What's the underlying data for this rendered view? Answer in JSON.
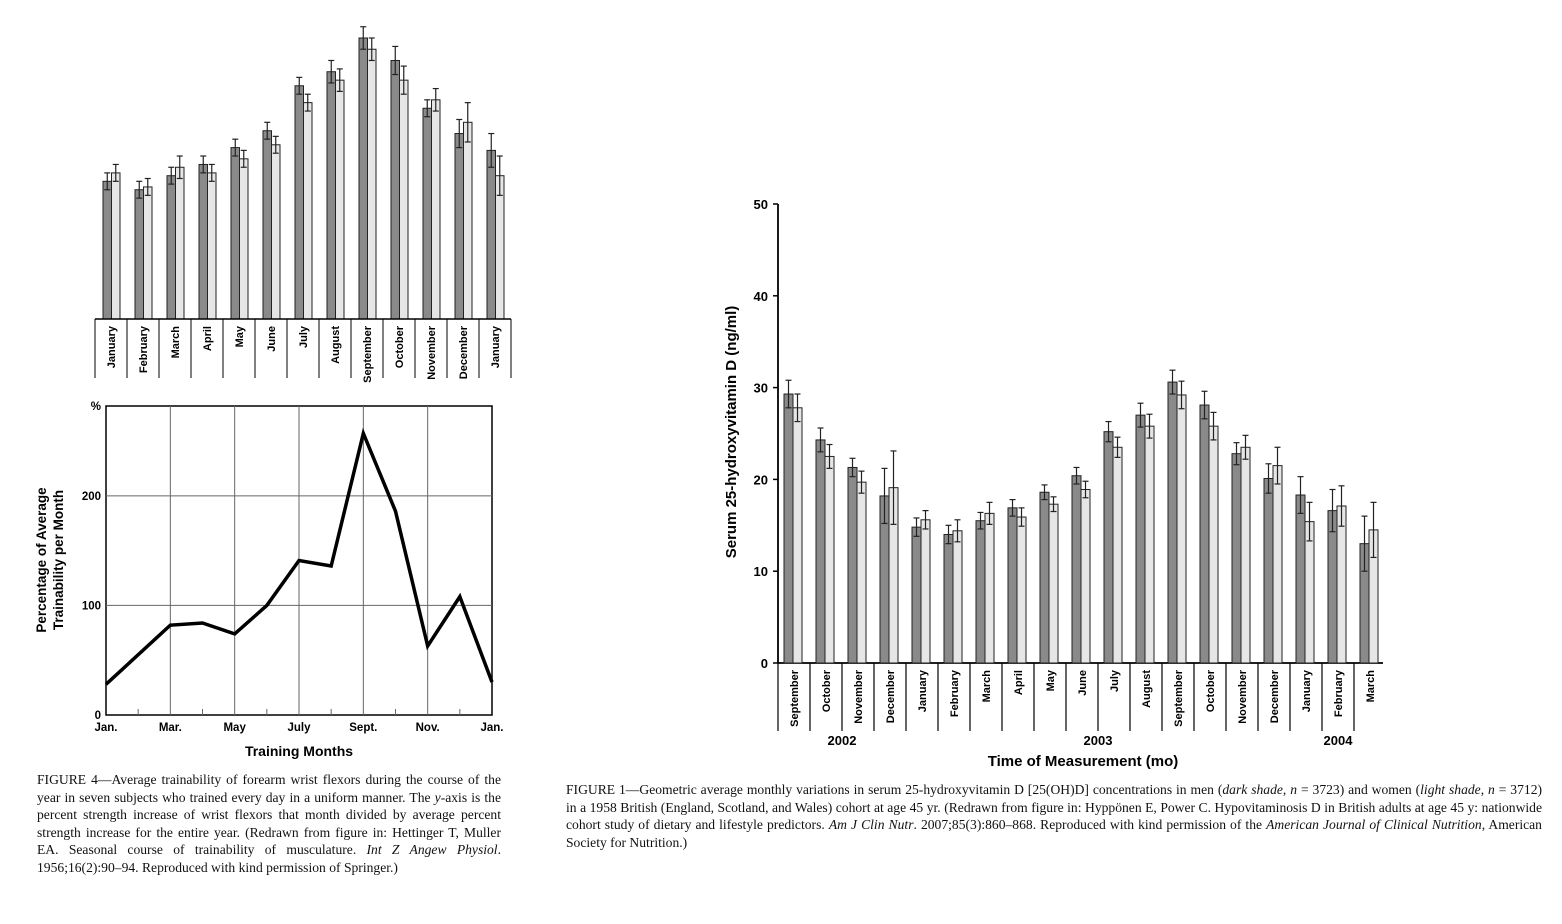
{
  "colors": {
    "men": "#8a8a8a",
    "women": "#e6e6e6",
    "line": "#000000"
  },
  "chart_data": [
    {
      "id": "top-left-bars",
      "type": "bar",
      "title": "",
      "xlabel": "",
      "ylabel": "",
      "note": "no y-axis shown; values are relative heights (September dark bar = 100)",
      "categories": [
        "January",
        "February",
        "March",
        "April",
        "May",
        "June",
        "July",
        "August",
        "September",
        "October",
        "November",
        "December",
        "January"
      ],
      "series": [
        {
          "name": "dark",
          "values": [
            49,
            46,
            51,
            55,
            61,
            67,
            83,
            88,
            100,
            92,
            75,
            66,
            60
          ],
          "errors": [
            3,
            3,
            3,
            3,
            3,
            3,
            3,
            4,
            4,
            5,
            3,
            5,
            6
          ]
        },
        {
          "name": "light",
          "values": [
            52,
            47,
            54,
            52,
            57,
            62,
            77,
            85,
            96,
            85,
            78,
            70,
            51
          ],
          "errors": [
            3,
            3,
            4,
            3,
            3,
            3,
            3,
            4,
            4,
            5,
            4,
            7,
            7
          ]
        }
      ],
      "ylim": [
        0,
        100
      ]
    },
    {
      "id": "figure-4-line",
      "type": "line",
      "title": "",
      "xlabel": "Training Months",
      "ylabel": "Percentage of Average Trainability per Month",
      "y_unit_label": "%",
      "x_tick_labels": [
        "Jan.",
        "Mar.",
        "May",
        "July",
        "Sept.",
        "Nov.",
        "Jan."
      ],
      "x_tick_positions": [
        0,
        2,
        4,
        6,
        8,
        10,
        12
      ],
      "y_ticks": [
        0,
        100,
        200
      ],
      "x": [
        0,
        2,
        3,
        4,
        5,
        6,
        7,
        8,
        9,
        10,
        11,
        12
      ],
      "y": [
        28,
        82,
        84,
        74,
        100,
        141,
        136,
        257,
        186,
        63,
        108,
        30
      ],
      "xlim": [
        0,
        12
      ],
      "ylim": [
        0,
        282
      ],
      "grid": true
    },
    {
      "id": "figure-1-bars",
      "type": "bar",
      "title": "",
      "xlabel": "Time of Measurement (mo)",
      "ylabel": "Serum 25-hydroxyvitamin D (ng/ml)",
      "y_ticks": [
        0,
        10,
        20,
        30,
        40,
        50
      ],
      "ylim": [
        0,
        50
      ],
      "categories": [
        "September",
        "October",
        "November",
        "December",
        "January",
        "February",
        "March",
        "April",
        "May",
        "June",
        "July",
        "August",
        "September",
        "October",
        "November",
        "December",
        "January",
        "February",
        "March"
      ],
      "year_labels": [
        {
          "label": "2002",
          "after_index": 1.5
        },
        {
          "label": "2003",
          "after_index": 9.5
        },
        {
          "label": "2004",
          "after_index": 17
        }
      ],
      "series": [
        {
          "name": "men (dark shade, n = 3723)",
          "values": [
            29.3,
            24.3,
            21.3,
            18.2,
            14.8,
            14.0,
            15.5,
            16.9,
            18.6,
            20.4,
            25.2,
            27.0,
            30.6,
            28.1,
            22.8,
            20.1,
            18.3,
            16.6,
            13.0
          ],
          "errors": [
            1.5,
            1.3,
            1.0,
            3.0,
            1.0,
            1.0,
            0.9,
            0.9,
            0.8,
            0.9,
            1.1,
            1.3,
            1.3,
            1.5,
            1.2,
            1.6,
            2.0,
            2.3,
            3.0
          ]
        },
        {
          "name": "women (light shade, n = 3712)",
          "values": [
            27.8,
            22.5,
            19.7,
            19.1,
            15.6,
            14.4,
            16.3,
            15.9,
            17.3,
            18.9,
            23.5,
            25.8,
            29.2,
            25.8,
            23.5,
            21.5,
            15.4,
            17.1,
            14.5
          ],
          "errors": [
            1.5,
            1.3,
            1.2,
            4.0,
            1.0,
            1.2,
            1.2,
            1.0,
            0.8,
            0.9,
            1.1,
            1.3,
            1.5,
            1.5,
            1.3,
            2.0,
            2.1,
            2.2,
            3.0
          ]
        }
      ]
    }
  ],
  "captions": {
    "figure4": [
      {
        "t": "FIGURE 4—Average trainability of forearm wrist flexors during the course of the year in seven subjects who trained every day in a uniform manner. The "
      },
      {
        "t": "y",
        "i": true
      },
      {
        "t": "-axis is the percent strength increase of wrist flexors that month divided by average percent strength increase for the entire year. (Redrawn from figure in: Hettinger T, Muller EA. Seasonal course of trainability of musculature. "
      },
      {
        "t": "Int Z Angew Physiol",
        "i": true
      },
      {
        "t": ". 1956;16(2):90–94. Reproduced with kind permission of Springer.)"
      }
    ],
    "figure1": [
      {
        "t": "FIGURE 1—Geometric average monthly variations in serum 25-hydroxyvitamin D [25(OH)D] concentrations in men ("
      },
      {
        "t": "dark shade",
        "i": true
      },
      {
        "t": ", "
      },
      {
        "t": "n",
        "i": true
      },
      {
        "t": " = 3723) and women ("
      },
      {
        "t": "light shade",
        "i": true
      },
      {
        "t": ", "
      },
      {
        "t": "n",
        "i": true
      },
      {
        "t": " = 3712) in a 1958 British (England, Scotland, and Wales) cohort at age 45 yr. (Redrawn from figure in: Hyppönen E, Power C. Hypovitaminosis D in British adults at age 45 y: nationwide cohort study of dietary and lifestyle predictors. "
      },
      {
        "t": "Am J Clin Nutr",
        "i": true
      },
      {
        "t": ". 2007;85(3):860–868. Reproduced with kind permission of the "
      },
      {
        "t": "American Journal of Clinical Nutrition",
        "i": true
      },
      {
        "t": ", American Society for Nutrition.)"
      }
    ]
  }
}
